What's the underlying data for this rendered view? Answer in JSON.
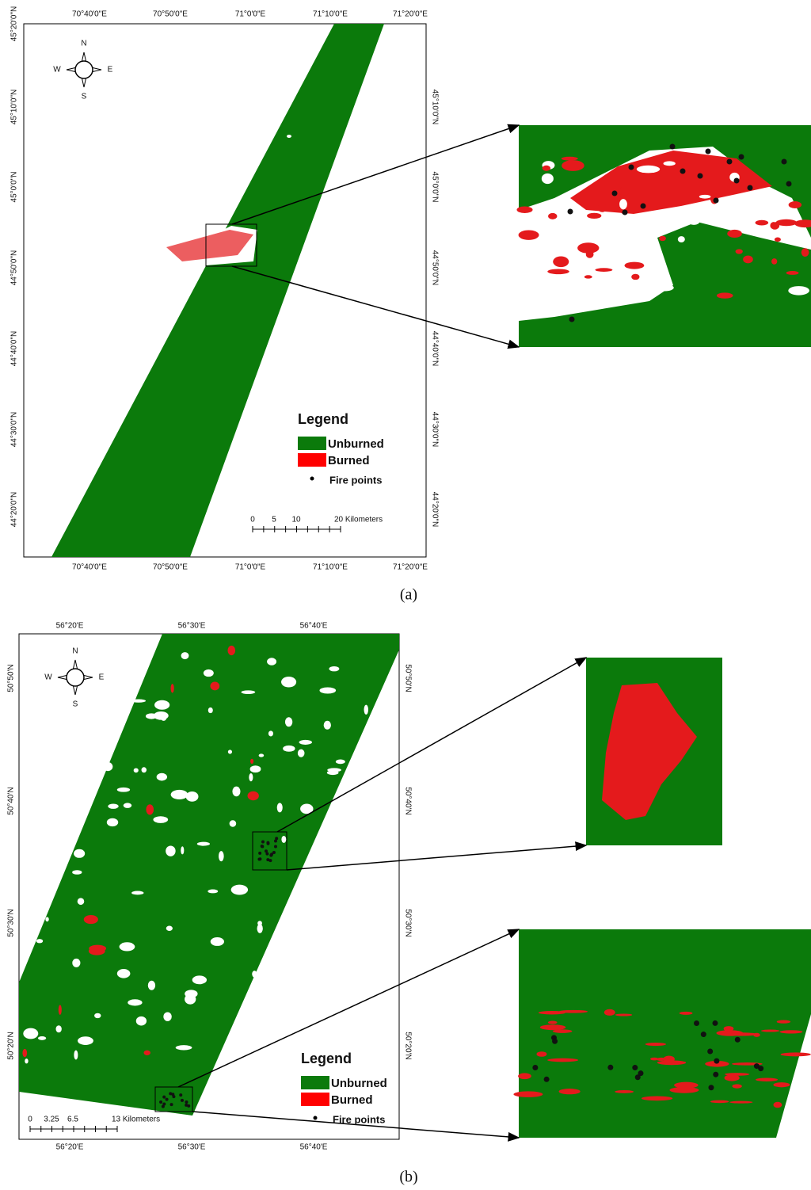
{
  "panel_a": {
    "label": "(a)",
    "x_labels_top": [
      "70°40'0\"E",
      "70°50'0\"E",
      "71°0'0\"E",
      "71°10'0\"E",
      "71°20'0\"E"
    ],
    "x_labels_bottom": [
      "70°40'0\"E",
      "70°50'0\"E",
      "71°0'0\"E",
      "71°10'0\"E",
      "71°20'0\"E"
    ],
    "y_labels_left": [
      "45°20'0\"N",
      "45°10'0\"N",
      "45°0'0\"N",
      "44°50'0\"N",
      "44°40'0\"N",
      "44°30'0\"N",
      "44°20'0\"N"
    ],
    "y_labels_right": [
      "45°10'0\"N",
      "45°0'0\"N",
      "44°50'0\"N",
      "44°40'0\"N",
      "44°30'0\"N",
      "44°20'0\"N"
    ],
    "legend": {
      "title": "Legend",
      "items": [
        "Unburned",
        "Burned",
        "Fire points"
      ]
    },
    "scale_bar": [
      "0",
      "5",
      "10",
      "20 Kilometers"
    ],
    "compass": [
      "N",
      "E",
      "S",
      "W"
    ]
  },
  "panel_b": {
    "label": "(b)",
    "x_labels_top": [
      "56°20'E",
      "56°30'E",
      "56°40'E"
    ],
    "x_labels_bottom": [
      "56°20'E",
      "56°30'E",
      "56°40'E"
    ],
    "y_labels_left": [
      "50°50'N",
      "50°40'N",
      "50°30'N",
      "50°20'N"
    ],
    "y_labels_right": [
      "50°50'N",
      "50°40'N",
      "50°30'N",
      "50°20'N"
    ],
    "legend": {
      "title": "Legend",
      "items": [
        "Unburned",
        "Burned",
        "Fire points"
      ]
    },
    "scale_bar": [
      "0",
      "3.25",
      "6.5",
      "13 Kilometers"
    ],
    "compass": [
      "N",
      "E",
      "S",
      "W"
    ]
  }
}
